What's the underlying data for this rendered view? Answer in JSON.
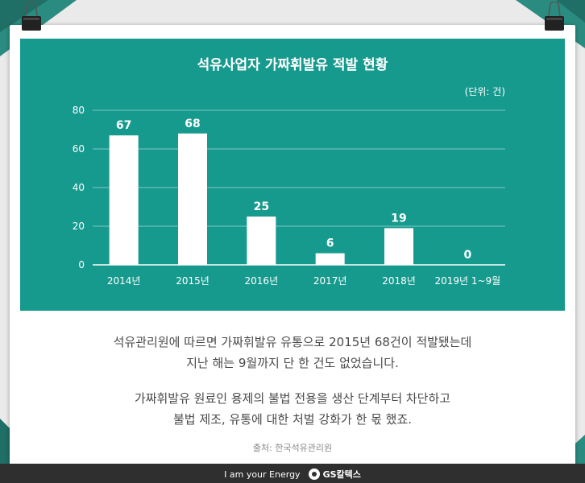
{
  "colors": {
    "teal": "#179a8e",
    "dark_green": "#1f5f55",
    "bar": "#ffffff",
    "text": "#4a4a4a"
  },
  "chart_data": {
    "type": "bar",
    "title": "석유사업자 가짜휘발유 적발 현황",
    "unit": "(단위: 건)",
    "categories": [
      "2014년",
      "2015년",
      "2016년",
      "2017년",
      "2018년",
      "2019년 1~9월"
    ],
    "values": [
      67,
      68,
      25,
      6,
      19,
      0
    ],
    "ylim": [
      0,
      80
    ],
    "yticks": [
      0,
      20,
      40,
      60,
      80
    ],
    "grid": true,
    "xlabel": "",
    "ylabel": ""
  },
  "body": {
    "paragraph1_line1": "석유관리원에 따르면 가짜휘발유 유통으로 2015년 68건이 적발됐는데",
    "paragraph1_line2": "지난 해는 9월까지 단 한 건도 없었습니다.",
    "paragraph2_line1": "가짜휘발유 원료인 용제의 불법 전용을 생산 단계부터 차단하고",
    "paragraph2_line2": "불법 제조, 유통에 대한 처벌 강화가 한 몫 했죠."
  },
  "source": "출처: 한국석유관리원",
  "footer": {
    "slogan": "I am your Energy",
    "brand": "GS칼텍스"
  },
  "icons": {
    "clip_left": "binder-clip-icon",
    "clip_right": "binder-clip-icon",
    "logo": "gs-logo-icon"
  }
}
